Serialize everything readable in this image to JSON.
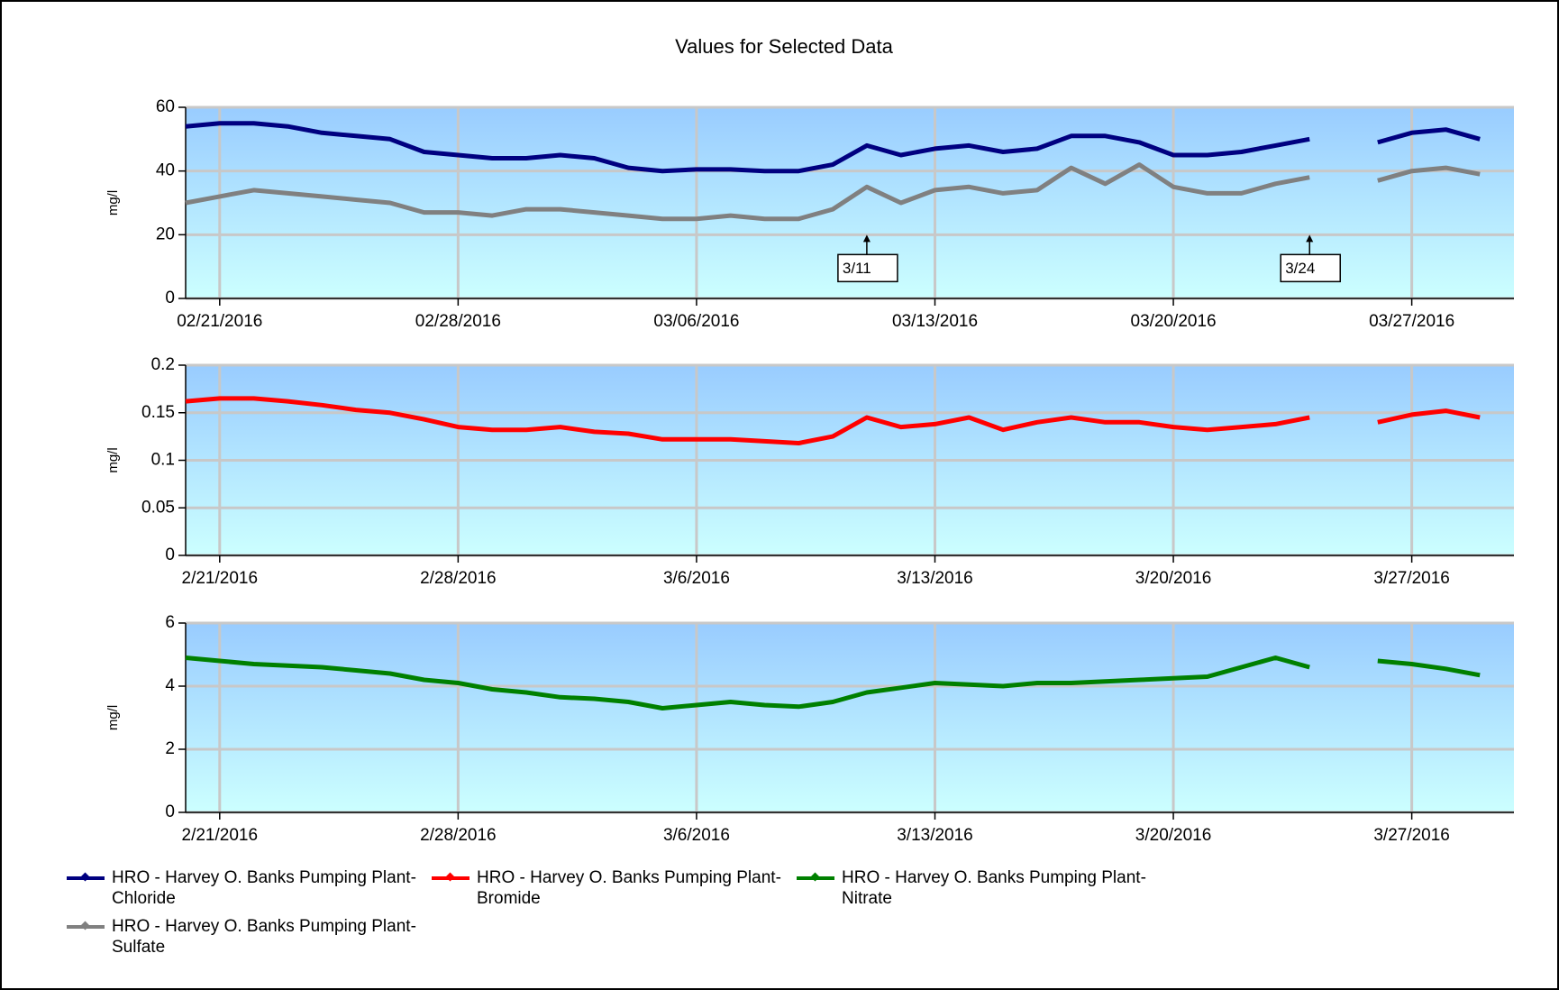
{
  "chart_data": [
    {
      "type": "line",
      "title": "Values for Selected Data",
      "ylabel": "mg/l",
      "x": [
        "2016-02-20",
        "2016-02-21",
        "2016-02-22",
        "2016-02-23",
        "2016-02-24",
        "2016-02-25",
        "2016-02-26",
        "2016-02-27",
        "2016-02-28",
        "2016-02-29",
        "2016-03-01",
        "2016-03-02",
        "2016-03-03",
        "2016-03-04",
        "2016-03-05",
        "2016-03-06",
        "2016-03-07",
        "2016-03-08",
        "2016-03-09",
        "2016-03-10",
        "2016-03-11",
        "2016-03-12",
        "2016-03-13",
        "2016-03-14",
        "2016-03-15",
        "2016-03-16",
        "2016-03-17",
        "2016-03-18",
        "2016-03-19",
        "2016-03-20",
        "2016-03-21",
        "2016-03-22",
        "2016-03-23",
        "2016-03-24",
        "2016-03-25",
        "2016-03-26",
        "2016-03-27",
        "2016-03-28",
        "2016-03-29"
      ],
      "xlim": [
        "2016-02-20",
        "2016-03-30"
      ],
      "xticks": [
        {
          "value": "2016-02-21",
          "label": "02/21/2016"
        },
        {
          "value": "2016-02-28",
          "label": "02/28/2016"
        },
        {
          "value": "2016-03-06",
          "label": "03/06/2016"
        },
        {
          "value": "2016-03-13",
          "label": "03/13/2016"
        },
        {
          "value": "2016-03-20",
          "label": "03/20/2016"
        },
        {
          "value": "2016-03-27",
          "label": "03/27/2016"
        }
      ],
      "ylim": [
        0,
        60
      ],
      "yticks": [
        0,
        20,
        40,
        60
      ],
      "grid": true,
      "series": [
        {
          "name": "HRO - Harvey O. Banks Pumping Plant-Chloride",
          "color": "#000080",
          "values": [
            54,
            55,
            55,
            54,
            52,
            51,
            50,
            46,
            45,
            44,
            44,
            45,
            44,
            41,
            40,
            40.5,
            40.5,
            40,
            40,
            42,
            48,
            45,
            47,
            48,
            46,
            47,
            51,
            51,
            49,
            45,
            45,
            46,
            48,
            50,
            null,
            49,
            52,
            53,
            50
          ]
        },
        {
          "name": "HRO - Harvey O. Banks Pumping Plant-Sulfate",
          "color": "#808080",
          "values": [
            30,
            32,
            34,
            33,
            32,
            31,
            30,
            27,
            27,
            26,
            28,
            28,
            27,
            26,
            25,
            25,
            26,
            25,
            25,
            28,
            35,
            30,
            34,
            35,
            33,
            34,
            41,
            36,
            42,
            35,
            33,
            33,
            36,
            38,
            null,
            37,
            40,
            41,
            39
          ]
        }
      ],
      "annotations": [
        {
          "text": "3/11",
          "x": "2016-03-11",
          "y": 20
        },
        {
          "text": "3/24",
          "x": "2016-03-24",
          "y": 20
        }
      ]
    },
    {
      "type": "line",
      "ylabel": "mg/l",
      "x": [
        "2016-02-20",
        "2016-02-21",
        "2016-02-22",
        "2016-02-23",
        "2016-02-24",
        "2016-02-25",
        "2016-02-26",
        "2016-02-27",
        "2016-02-28",
        "2016-02-29",
        "2016-03-01",
        "2016-03-02",
        "2016-03-03",
        "2016-03-04",
        "2016-03-05",
        "2016-03-06",
        "2016-03-07",
        "2016-03-08",
        "2016-03-09",
        "2016-03-10",
        "2016-03-11",
        "2016-03-12",
        "2016-03-13",
        "2016-03-14",
        "2016-03-15",
        "2016-03-16",
        "2016-03-17",
        "2016-03-18",
        "2016-03-19",
        "2016-03-20",
        "2016-03-21",
        "2016-03-22",
        "2016-03-23",
        "2016-03-24",
        "2016-03-25",
        "2016-03-26",
        "2016-03-27",
        "2016-03-28",
        "2016-03-29"
      ],
      "xlim": [
        "2016-02-20",
        "2016-03-30"
      ],
      "xticks": [
        {
          "value": "2016-02-21",
          "label": "2/21/2016"
        },
        {
          "value": "2016-02-28",
          "label": "2/28/2016"
        },
        {
          "value": "2016-03-06",
          "label": "3/6/2016"
        },
        {
          "value": "2016-03-13",
          "label": "3/13/2016"
        },
        {
          "value": "2016-03-20",
          "label": "3/20/2016"
        },
        {
          "value": "2016-03-27",
          "label": "3/27/2016"
        }
      ],
      "ylim": [
        0,
        0.2
      ],
      "yticks": [
        0,
        0.05,
        0.1,
        0.15,
        0.2
      ],
      "grid": true,
      "series": [
        {
          "name": "HRO - Harvey O. Banks Pumping Plant-Bromide",
          "color": "#ff0000",
          "values": [
            0.162,
            0.165,
            0.165,
            0.162,
            0.158,
            0.153,
            0.15,
            0.143,
            0.135,
            0.132,
            0.132,
            0.135,
            0.13,
            0.128,
            0.122,
            0.122,
            0.122,
            0.12,
            0.118,
            0.125,
            0.145,
            0.135,
            0.138,
            0.145,
            0.132,
            0.14,
            0.145,
            0.14,
            0.14,
            0.135,
            0.132,
            0.135,
            0.138,
            0.145,
            null,
            0.14,
            0.148,
            0.152,
            0.145
          ]
        }
      ]
    },
    {
      "type": "line",
      "ylabel": "mg/l",
      "x": [
        "2016-02-20",
        "2016-02-21",
        "2016-02-22",
        "2016-02-23",
        "2016-02-24",
        "2016-02-25",
        "2016-02-26",
        "2016-02-27",
        "2016-02-28",
        "2016-02-29",
        "2016-03-01",
        "2016-03-02",
        "2016-03-03",
        "2016-03-04",
        "2016-03-05",
        "2016-03-06",
        "2016-03-07",
        "2016-03-08",
        "2016-03-09",
        "2016-03-10",
        "2016-03-11",
        "2016-03-12",
        "2016-03-13",
        "2016-03-14",
        "2016-03-15",
        "2016-03-16",
        "2016-03-17",
        "2016-03-18",
        "2016-03-19",
        "2016-03-20",
        "2016-03-21",
        "2016-03-22",
        "2016-03-23",
        "2016-03-24",
        "2016-03-25",
        "2016-03-26",
        "2016-03-27",
        "2016-03-28",
        "2016-03-29"
      ],
      "xlim": [
        "2016-02-20",
        "2016-03-30"
      ],
      "xticks": [
        {
          "value": "2016-02-21",
          "label": "2/21/2016"
        },
        {
          "value": "2016-02-28",
          "label": "2/28/2016"
        },
        {
          "value": "2016-03-06",
          "label": "3/6/2016"
        },
        {
          "value": "2016-03-13",
          "label": "3/13/2016"
        },
        {
          "value": "2016-03-20",
          "label": "3/20/2016"
        },
        {
          "value": "2016-03-27",
          "label": "3/27/2016"
        }
      ],
      "ylim": [
        0,
        6
      ],
      "yticks": [
        0,
        2,
        4,
        6
      ],
      "grid": true,
      "series": [
        {
          "name": "HRO - Harvey O. Banks Pumping Plant-Nitrate",
          "color": "#008000",
          "values": [
            4.9,
            4.8,
            4.7,
            4.65,
            4.6,
            4.5,
            4.4,
            4.2,
            4.1,
            3.9,
            3.8,
            3.65,
            3.6,
            3.5,
            3.3,
            3.4,
            3.5,
            3.4,
            3.35,
            3.5,
            3.8,
            3.95,
            4.1,
            4.05,
            4,
            4.1,
            4.1,
            4.15,
            4.2,
            4.25,
            4.3,
            4.6,
            4.9,
            4.6,
            null,
            4.8,
            4.7,
            4.55,
            4.35
          ]
        }
      ]
    }
  ]
}
